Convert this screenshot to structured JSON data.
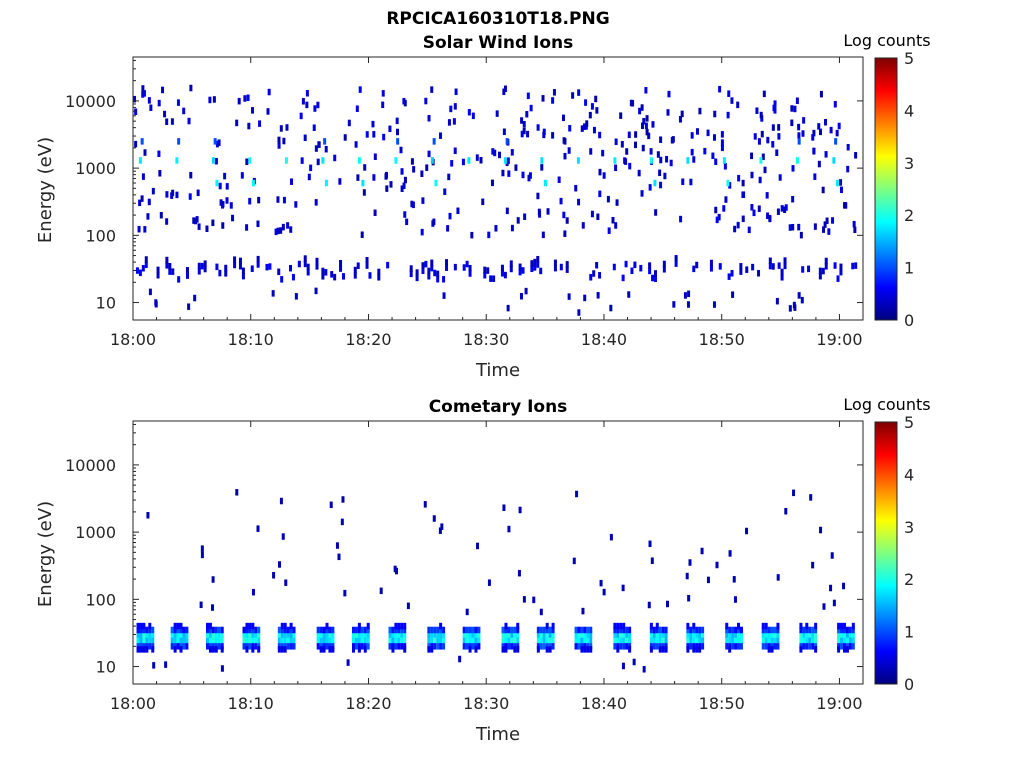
{
  "figure_title": "RPCICA160310T18.PNG",
  "chart_data": [
    {
      "type": "heatmap",
      "title": "Solar Wind Ions",
      "xlabel": "Time",
      "ylabel": "Energy (eV)",
      "x_ticks": [
        "18:00",
        "18:10",
        "18:20",
        "18:30",
        "18:40",
        "18:50",
        "19:00"
      ],
      "x_range": [
        "18:00",
        "19:02"
      ],
      "y_ticks": [
        10,
        100,
        1000,
        10000
      ],
      "y_range": [
        5.5,
        45000
      ],
      "y_scale": "log",
      "colorbar_label": "Log counts",
      "colorbar_ticks": [
        0,
        1,
        2,
        3,
        4,
        5
      ],
      "colorbar_range": [
        0,
        5
      ],
      "colormap": "jet",
      "bands": [
        {
          "energy_range": [
            20,
            40
          ],
          "log_counts": 0.4,
          "note": "dense, intermittent"
        },
        {
          "energy_range": [
            1100,
            1500
          ],
          "log_counts": 1.8,
          "note": "periodic spots"
        },
        {
          "energy_range": [
            500,
            700
          ],
          "log_counts": 1.8,
          "note": "periodic spots"
        }
      ]
    },
    {
      "type": "heatmap",
      "title": "Cometary Ions",
      "xlabel": "Time",
      "ylabel": "Energy (eV)",
      "x_ticks": [
        "18:00",
        "18:10",
        "18:20",
        "18:30",
        "18:40",
        "18:50",
        "19:00"
      ],
      "x_range": [
        "18:00",
        "19:02"
      ],
      "y_ticks": [
        10,
        100,
        1000,
        10000
      ],
      "y_range": [
        5.5,
        45000
      ],
      "y_scale": "log",
      "colorbar_label": "Log counts",
      "colorbar_ticks": [
        0,
        1,
        2,
        3,
        4,
        5
      ],
      "colorbar_range": [
        0,
        5
      ],
      "colormap": "jet",
      "bursts": {
        "start_minutes": [
          0.3,
          3.2,
          6.2,
          9.3,
          12.3,
          15.6,
          18.6,
          21.7,
          25.0,
          28.0,
          31.3,
          34.3,
          37.5,
          40.8,
          43.9,
          47.0,
          50.3,
          53.4,
          56.6,
          59.8
        ],
        "energy_range": [
          17,
          45
        ],
        "peak_log_counts": 2.0
      }
    }
  ]
}
